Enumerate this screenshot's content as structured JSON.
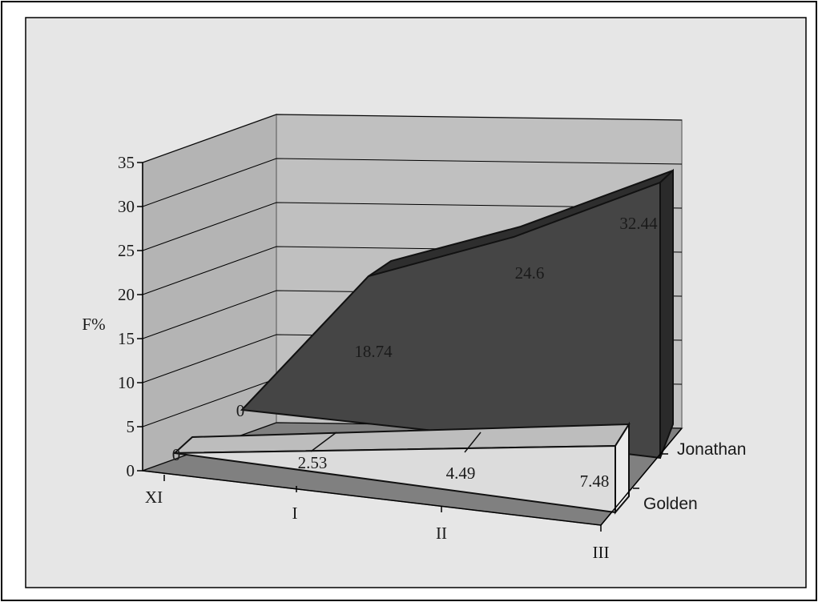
{
  "chart_data": {
    "type": "area",
    "title": "",
    "ylabel": "F%",
    "xlabel": "",
    "ylim": [
      0,
      35
    ],
    "yticks": [
      0,
      5,
      10,
      15,
      20,
      25,
      30,
      35
    ],
    "categories": [
      "XI",
      "I",
      "II",
      "III"
    ],
    "series": [
      {
        "name": "Golden",
        "values": [
          0,
          2.53,
          4.49,
          7.48
        ],
        "labels": [
          "0",
          "2.53",
          "4.49",
          "7.48"
        ],
        "color": "#dcdcdc"
      },
      {
        "name": "Jonathan",
        "values": [
          0,
          18.74,
          24.6,
          32.44
        ],
        "labels": [
          "0",
          "18.74",
          "24.6",
          "32.44"
        ],
        "color": "#454545"
      }
    ],
    "grid": true,
    "three_d": true
  },
  "colors": {
    "chart_background": "#e6e6e6",
    "back_wall": "#c0c0c0",
    "side_wall": "#b4b4b4",
    "floor": "#808080",
    "gridline": "#000000"
  }
}
